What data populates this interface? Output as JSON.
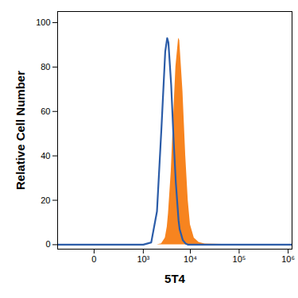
{
  "chart_data": {
    "type": "histogram",
    "xlabel": "5T4",
    "ylabel": "Relative Cell Number",
    "log": "x",
    "x": [
      -500,
      0,
      500,
      1000,
      1500,
      2000,
      2500,
      3000,
      3300,
      3500,
      4000,
      4500,
      5000,
      5700,
      6000,
      7000,
      8000,
      9000,
      10000,
      12000,
      15000,
      20000,
      100000,
      1200000
    ],
    "series": [
      {
        "type": "area",
        "color": "#f7841f",
        "values": [
          0,
          0,
          0,
          0,
          0,
          0,
          0.4,
          3,
          8,
          14,
          33,
          58,
          80,
          93,
          92,
          69,
          40,
          20,
          9,
          3,
          1,
          0.3,
          0,
          0
        ]
      },
      {
        "type": "line",
        "color": "#2b5ca8",
        "values": [
          0,
          0,
          0,
          0,
          1,
          15,
          53,
          87,
          93,
          91,
          72,
          47,
          28,
          11,
          7,
          2,
          0.5,
          0,
          0,
          0,
          0,
          0,
          0,
          0
        ]
      }
    ],
    "xlim": [
      -500,
      1200000
    ],
    "xticks": [
      0,
      {
        "value": 1000,
        "label": "10³"
      },
      {
        "value": 10000,
        "label": "10⁴"
      },
      {
        "value": 100000,
        "label": "10⁵"
      },
      {
        "value": 1000000,
        "label": "10⁶"
      }
    ],
    "ylim": [
      -2,
      105
    ],
    "yticks": [
      0,
      20,
      40,
      60,
      80,
      100
    ]
  }
}
